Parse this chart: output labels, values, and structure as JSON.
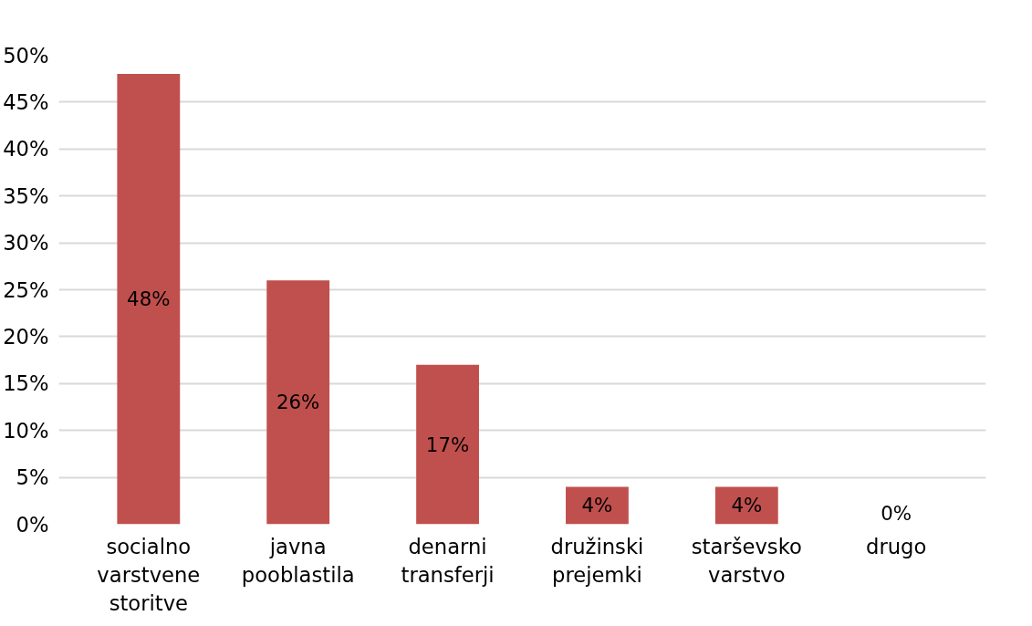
{
  "chart_data": {
    "type": "bar",
    "categories": [
      "socialno varstvene storitve",
      "javna pooblastila",
      "denarni transferji",
      "družinski prejemki",
      "starševsko varstvo",
      "drugo"
    ],
    "values": [
      48,
      26,
      17,
      4,
      4,
      0
    ],
    "value_labels": [
      "48%",
      "26%",
      "17%",
      "4%",
      "4%",
      "0%"
    ],
    "color": "#c0504d",
    "ylim": [
      0,
      50
    ],
    "yticks": [
      {
        "value": 0,
        "label": "0%"
      },
      {
        "value": 5,
        "label": "5%"
      },
      {
        "value": 10,
        "label": "10%"
      },
      {
        "value": 15,
        "label": "15%"
      },
      {
        "value": 20,
        "label": "20%"
      },
      {
        "value": 25,
        "label": "25%"
      },
      {
        "value": 30,
        "label": "30%"
      },
      {
        "value": 35,
        "label": "35%"
      },
      {
        "value": 40,
        "label": "40%"
      },
      {
        "value": 45,
        "label": "45%"
      },
      {
        "value": 50,
        "label": "50%"
      }
    ],
    "grid": "y"
  }
}
